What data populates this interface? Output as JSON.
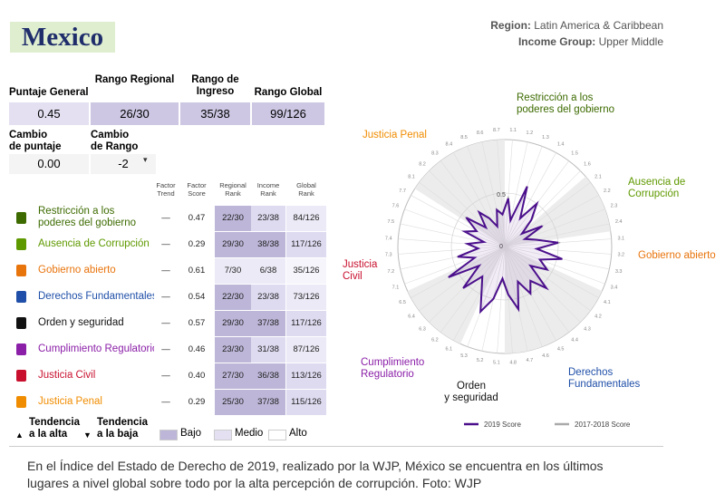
{
  "header": {
    "title": "Mexico",
    "region_label": "Region:",
    "region": "Latin America & Caribbean",
    "income_label": "Income Group:",
    "income": "Upper Middle"
  },
  "scores": [
    {
      "label": "Puntaje General",
      "value": "0.45"
    },
    {
      "label": "Rango Regional",
      "value": "26/30"
    },
    {
      "label": "Rango de\nIngreso",
      "value": "35/38"
    },
    {
      "label": "Rango Global",
      "value": "99/126"
    }
  ],
  "changes": [
    {
      "label": "Cambio\nde puntaje",
      "value": "0.00"
    },
    {
      "label": "Cambio\nde Rango",
      "value": "-2"
    }
  ],
  "table": {
    "headers": [
      "Factor\nTrend",
      "Factor\nScore",
      "Regional\nRank",
      "Income\nRank",
      "Global\nRank"
    ],
    "rows": [
      {
        "factor": "Restricción a los\npoderes del gobierno",
        "color": "#3d6b00",
        "cells": [
          "—",
          "0.47",
          "22/30",
          "23/38",
          "84/126"
        ],
        "shades": [
          "#ffffff",
          "#ffffff",
          "#bdb6d8",
          "#dedaf0",
          "#eceaf6"
        ]
      },
      {
        "factor": "Ausencia de Corrupción",
        "color": "#5f9900",
        "cells": [
          "—",
          "0.29",
          "29/30",
          "38/38",
          "117/126"
        ],
        "shades": [
          "#ffffff",
          "#ffffff",
          "#bdb6d8",
          "#bdb6d8",
          "#dedaf0"
        ]
      },
      {
        "factor": "Gobierno abierto",
        "color": "#e8740c",
        "cells": [
          "—",
          "0.61",
          "7/30",
          "6/38",
          "35/126"
        ],
        "shades": [
          "#ffffff",
          "#ffffff",
          "#eceaf6",
          "#eceaf6",
          "#f6f5fb"
        ]
      },
      {
        "factor": "Derechos Fundamentales",
        "color": "#1f4fa8",
        "cells": [
          "—",
          "0.54",
          "22/30",
          "23/38",
          "73/126"
        ],
        "shades": [
          "#ffffff",
          "#ffffff",
          "#bdb6d8",
          "#dedaf0",
          "#eceaf6"
        ]
      },
      {
        "factor": "Orden y seguridad",
        "color": "#111111",
        "cells": [
          "—",
          "0.57",
          "29/30",
          "37/38",
          "117/126"
        ],
        "shades": [
          "#ffffff",
          "#ffffff",
          "#bdb6d8",
          "#bdb6d8",
          "#dedaf0"
        ]
      },
      {
        "factor": "Cumplimiento Regulatorio",
        "color": "#8b1fa8",
        "cells": [
          "—",
          "0.46",
          "23/30",
          "31/38",
          "87/126"
        ],
        "shades": [
          "#ffffff",
          "#ffffff",
          "#bdb6d8",
          "#dedaf0",
          "#eceaf6"
        ]
      },
      {
        "factor": "Justicia Civil",
        "color": "#c8102e",
        "cells": [
          "—",
          "0.40",
          "27/30",
          "36/38",
          "113/126"
        ],
        "shades": [
          "#ffffff",
          "#ffffff",
          "#bdb6d8",
          "#bdb6d8",
          "#dedaf0"
        ]
      },
      {
        "factor": "Justicia Penal",
        "color": "#f08c00",
        "cells": [
          "—",
          "0.29",
          "25/30",
          "37/38",
          "115/126"
        ],
        "shades": [
          "#ffffff",
          "#ffffff",
          "#bdb6d8",
          "#bdb6d8",
          "#dedaf0"
        ]
      }
    ]
  },
  "legend": {
    "up": "Tendencia\na la alta",
    "down": "Tendencia\na la baja",
    "levels": [
      {
        "label": "Bajo",
        "color": "#bdb6d8"
      },
      {
        "label": "Medio",
        "color": "#e4e0f2"
      },
      {
        "label": "Alto",
        "color": "#ffffff"
      }
    ]
  },
  "chart_data": {
    "type": "radar",
    "categories": [
      "1.1",
      "1.2",
      "1.3",
      "1.4",
      "1.5",
      "1.6",
      "2.1",
      "2.2",
      "2.3",
      "2.4",
      "3.1",
      "3.2",
      "3.3",
      "3.4",
      "4.1",
      "4.2",
      "4.3",
      "4.4",
      "4.5",
      "4.6",
      "4.7",
      "4.8",
      "5.1",
      "5.2",
      "5.3",
      "6.1",
      "6.2",
      "6.3",
      "6.4",
      "6.5",
      "7.1",
      "7.2",
      "7.3",
      "7.4",
      "7.5",
      "7.6",
      "7.7",
      "8.1",
      "8.2",
      "8.3",
      "8.4",
      "8.5",
      "8.6",
      "8.7"
    ],
    "factor_labels": [
      {
        "text": "Restricción a los\npoderes del gobierno",
        "color": "#3d6b00"
      },
      {
        "text": "Ausencia de\nCorrupción",
        "color": "#5f9900"
      },
      {
        "text": "Gobierno abierto",
        "color": "#e8740c"
      },
      {
        "text": "Derechos\nFundamentales",
        "color": "#1f4fa8"
      },
      {
        "text": "Orden\ny seguridad",
        "color": "#111111"
      },
      {
        "text": "Cumplimiento\nRegulatorio",
        "color": "#8b1fa8"
      },
      {
        "text": "Justicia\nCivil",
        "color": "#c8102e"
      },
      {
        "text": "Justicia Penal",
        "color": "#f08c00"
      }
    ],
    "rlim": [
      0,
      1
    ],
    "rticks": [
      0,
      0.5
    ],
    "series": [
      {
        "name": "2019 Score",
        "color": "#4b0f8c",
        "values": [
          0.45,
          0.25,
          0.6,
          0.3,
          0.5,
          0.35,
          0.2,
          0.4,
          0.2,
          0.3,
          0.5,
          0.3,
          0.55,
          0.35,
          0.45,
          0.3,
          0.55,
          0.4,
          0.5,
          0.35,
          0.6,
          0.45,
          0.3,
          0.5,
          0.65,
          0.45,
          0.35,
          0.55,
          0.3,
          0.6,
          0.3,
          0.45,
          0.25,
          0.35,
          0.2,
          0.4,
          0.3,
          0.45,
          0.25,
          0.4,
          0.3,
          0.2,
          0.35,
          0.3
        ]
      },
      {
        "name": "2017-2018 Score",
        "color": "#aaaaaa",
        "values": [
          0.47,
          0.27,
          0.58,
          0.32,
          0.5,
          0.37,
          0.22,
          0.41,
          0.22,
          0.31,
          0.52,
          0.32,
          0.55,
          0.36,
          0.46,
          0.31,
          0.55,
          0.41,
          0.51,
          0.36,
          0.6,
          0.46,
          0.32,
          0.51,
          0.64,
          0.46,
          0.36,
          0.55,
          0.31,
          0.59,
          0.31,
          0.46,
          0.26,
          0.36,
          0.21,
          0.41,
          0.31,
          0.46,
          0.26,
          0.41,
          0.31,
          0.21,
          0.36,
          0.31
        ]
      }
    ]
  },
  "caption": "En el Índice del Estado de Derecho de 2019, realizado por la WJP, México se encuentra en los últimos lugares a nivel global sobre todo por la alta percepción de corrupción. Foto: WJP"
}
